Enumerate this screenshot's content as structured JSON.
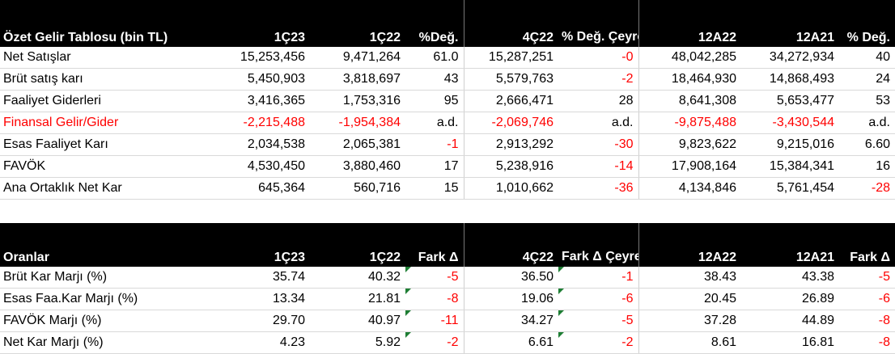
{
  "income_statement": {
    "header": [
      "Özet Gelir Tablosu (bin TL)",
      "1Ç23",
      "1Ç22",
      "%Değ.",
      "4Ç22",
      "% Değ. Çeyreksel",
      "12A22",
      "12A21",
      "% Değ."
    ],
    "rows": [
      {
        "label": "Net Satışlar",
        "cells": [
          "15,253,456",
          "9,471,264",
          "61.0",
          "15,287,251",
          "-0",
          "48,042,285",
          "34,272,934",
          "40"
        ],
        "neg": [
          false,
          false,
          false,
          false,
          true,
          false,
          false,
          false
        ]
      },
      {
        "label": "Brüt satış karı",
        "cells": [
          "5,450,903",
          "3,818,697",
          "43",
          "5,579,763",
          "-2",
          "18,464,930",
          "14,868,493",
          "24"
        ],
        "neg": [
          false,
          false,
          false,
          false,
          true,
          false,
          false,
          false
        ]
      },
      {
        "label": "Faaliyet Giderleri",
        "cells": [
          "3,416,365",
          "1,753,316",
          "95",
          "2,666,471",
          "28",
          "8,641,308",
          "5,653,477",
          "53"
        ],
        "neg": [
          false,
          false,
          false,
          false,
          false,
          false,
          false,
          false
        ]
      },
      {
        "label": "Finansal Gelir/Gider",
        "cells": [
          "-2,215,488",
          "-1,954,384",
          "a.d.",
          "-2,069,746",
          "a.d.",
          "-9,875,488",
          "-3,430,544",
          "a.d."
        ],
        "neg": [
          true,
          true,
          false,
          true,
          false,
          true,
          true,
          false
        ],
        "label_neg": true
      },
      {
        "label": "Esas Faaliyet Karı",
        "cells": [
          "2,034,538",
          "2,065,381",
          "-1",
          "2,913,292",
          "-30",
          "9,823,622",
          "9,215,016",
          "6.60"
        ],
        "neg": [
          false,
          false,
          true,
          false,
          true,
          false,
          false,
          false
        ]
      },
      {
        "label": "FAVÖK",
        "cells": [
          "4,530,450",
          "3,880,460",
          "17",
          "5,238,916",
          "-14",
          "17,908,164",
          "15,384,341",
          "16"
        ],
        "neg": [
          false,
          false,
          false,
          false,
          true,
          false,
          false,
          false
        ]
      },
      {
        "label": "Ana Ortaklık Net Kar",
        "cells": [
          "645,364",
          "560,716",
          "15",
          "1,010,662",
          "-36",
          "4,134,846",
          "5,761,454",
          "-28"
        ],
        "neg": [
          false,
          false,
          false,
          false,
          true,
          false,
          false,
          true
        ]
      }
    ]
  },
  "ratios": {
    "header": [
      "Oranlar",
      "1Ç23",
      "1Ç22",
      "Fark Δ",
      "4Ç22",
      "Fark Δ Çeyreksel",
      "12A22",
      "12A21",
      "Fark Δ"
    ],
    "rows": [
      {
        "label": "Brüt Kar Marjı (%)",
        "cells": [
          "35.74",
          "40.32",
          "-5",
          "36.50",
          "-1",
          "38.43",
          "43.38",
          "-5"
        ],
        "neg": [
          false,
          false,
          true,
          false,
          true,
          false,
          false,
          true
        ]
      },
      {
        "label": "Esas Faa.Kar Marjı (%)",
        "cells": [
          "13.34",
          "21.81",
          "-8",
          "19.06",
          "-6",
          "20.45",
          "26.89",
          "-6"
        ],
        "neg": [
          false,
          false,
          true,
          false,
          true,
          false,
          false,
          true
        ]
      },
      {
        "label": "FAVÖK Marjı (%)",
        "cells": [
          "29.70",
          "40.97",
          "-11",
          "34.27",
          "-5",
          "37.28",
          "44.89",
          "-8"
        ],
        "neg": [
          false,
          false,
          true,
          false,
          true,
          false,
          false,
          true
        ]
      },
      {
        "label": "Net Kar Marjı (%)",
        "cells": [
          "4.23",
          "5.92",
          "-2",
          "6.61",
          "-2",
          "8.61",
          "16.81",
          "-8"
        ],
        "neg": [
          false,
          false,
          true,
          false,
          true,
          false,
          false,
          true
        ]
      }
    ]
  },
  "colors": {
    "header_bg": "#000000",
    "header_text": "#ffffff",
    "negative": "#ff0000",
    "comment_marker": "#1e7e34"
  }
}
